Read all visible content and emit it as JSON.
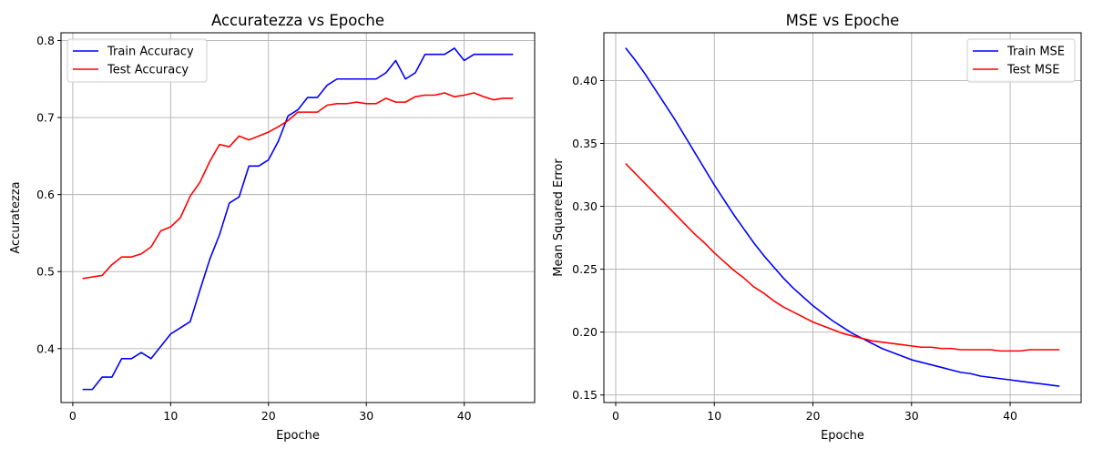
{
  "chart_data": [
    {
      "type": "line",
      "title": "Accuratezza vs Epoche",
      "xlabel": "Epoche",
      "ylabel": "Accuratezza",
      "xlim": [
        -1.2,
        47.2
      ],
      "ylim": [
        0.33,
        0.81
      ],
      "xticks": [
        0,
        10,
        20,
        30,
        40
      ],
      "yticks": [
        0.4,
        0.5,
        0.6,
        0.7,
        0.8
      ],
      "ytick_decimals": 1,
      "grid": true,
      "legend_position": "top-left",
      "x": [
        1,
        2,
        3,
        4,
        5,
        6,
        7,
        8,
        9,
        10,
        11,
        12,
        13,
        14,
        15,
        16,
        17,
        18,
        19,
        20,
        21,
        22,
        23,
        24,
        25,
        26,
        27,
        28,
        29,
        30,
        31,
        32,
        33,
        34,
        35,
        36,
        37,
        38,
        39,
        40,
        41,
        42,
        43,
        44,
        45
      ],
      "series": [
        {
          "name": "Train Accuracy",
          "color": "#0000ff",
          "values": [
            0.347,
            0.347,
            0.363,
            0.363,
            0.387,
            0.387,
            0.395,
            0.387,
            0.403,
            0.419,
            0.427,
            0.435,
            0.476,
            0.516,
            0.548,
            0.589,
            0.597,
            0.637,
            0.637,
            0.645,
            0.669,
            0.702,
            0.71,
            0.726,
            0.726,
            0.742,
            0.75,
            0.75,
            0.75,
            0.75,
            0.75,
            0.758,
            0.774,
            0.75,
            0.758,
            0.782,
            0.782,
            0.782,
            0.79,
            0.774,
            0.782,
            0.782,
            0.782,
            0.782,
            0.782
          ]
        },
        {
          "name": "Test Accuracy",
          "color": "#ff0000",
          "values": [
            0.491,
            0.493,
            0.495,
            0.509,
            0.519,
            0.519,
            0.523,
            0.532,
            0.553,
            0.558,
            0.57,
            0.598,
            0.616,
            0.643,
            0.665,
            0.662,
            0.676,
            0.671,
            0.676,
            0.681,
            0.688,
            0.696,
            0.707,
            0.707,
            0.707,
            0.716,
            0.718,
            0.718,
            0.72,
            0.718,
            0.718,
            0.725,
            0.72,
            0.72,
            0.727,
            0.729,
            0.729,
            0.732,
            0.727,
            0.729,
            0.732,
            0.727,
            0.723,
            0.725,
            0.725
          ]
        }
      ]
    },
    {
      "type": "line",
      "title": "MSE vs Epoche",
      "xlabel": "Epoche",
      "ylabel": "Mean Squared Error",
      "xlim": [
        -1.2,
        47.2
      ],
      "ylim": [
        0.144,
        0.438
      ],
      "xticks": [
        0,
        10,
        20,
        30,
        40
      ],
      "yticks": [
        0.15,
        0.2,
        0.25,
        0.3,
        0.35,
        0.4
      ],
      "ytick_decimals": 2,
      "grid": true,
      "legend_position": "top-right",
      "x": [
        1,
        2,
        3,
        4,
        5,
        6,
        7,
        8,
        9,
        10,
        11,
        12,
        13,
        14,
        15,
        16,
        17,
        18,
        19,
        20,
        21,
        22,
        23,
        24,
        25,
        26,
        27,
        28,
        29,
        30,
        31,
        32,
        33,
        34,
        35,
        36,
        37,
        38,
        39,
        40,
        41,
        42,
        43,
        44,
        45
      ],
      "series": [
        {
          "name": "Train MSE",
          "color": "#0000ff",
          "values": [
            0.426,
            0.416,
            0.405,
            0.393,
            0.381,
            0.369,
            0.356,
            0.343,
            0.33,
            0.317,
            0.305,
            0.293,
            0.282,
            0.271,
            0.261,
            0.252,
            0.243,
            0.235,
            0.228,
            0.221,
            0.215,
            0.209,
            0.204,
            0.199,
            0.195,
            0.191,
            0.187,
            0.184,
            0.181,
            0.178,
            0.176,
            0.174,
            0.172,
            0.17,
            0.168,
            0.167,
            0.165,
            0.164,
            0.163,
            0.162,
            0.161,
            0.16,
            0.159,
            0.158,
            0.157
          ]
        },
        {
          "name": "Test MSE",
          "color": "#ff0000",
          "values": [
            0.334,
            0.326,
            0.318,
            0.31,
            0.302,
            0.294,
            0.286,
            0.278,
            0.271,
            0.263,
            0.256,
            0.249,
            0.243,
            0.236,
            0.231,
            0.225,
            0.22,
            0.216,
            0.212,
            0.208,
            0.205,
            0.202,
            0.199,
            0.197,
            0.195,
            0.193,
            0.192,
            0.191,
            0.19,
            0.189,
            0.188,
            0.188,
            0.187,
            0.187,
            0.186,
            0.186,
            0.186,
            0.186,
            0.185,
            0.185,
            0.185,
            0.186,
            0.186,
            0.186,
            0.186
          ]
        }
      ]
    }
  ]
}
